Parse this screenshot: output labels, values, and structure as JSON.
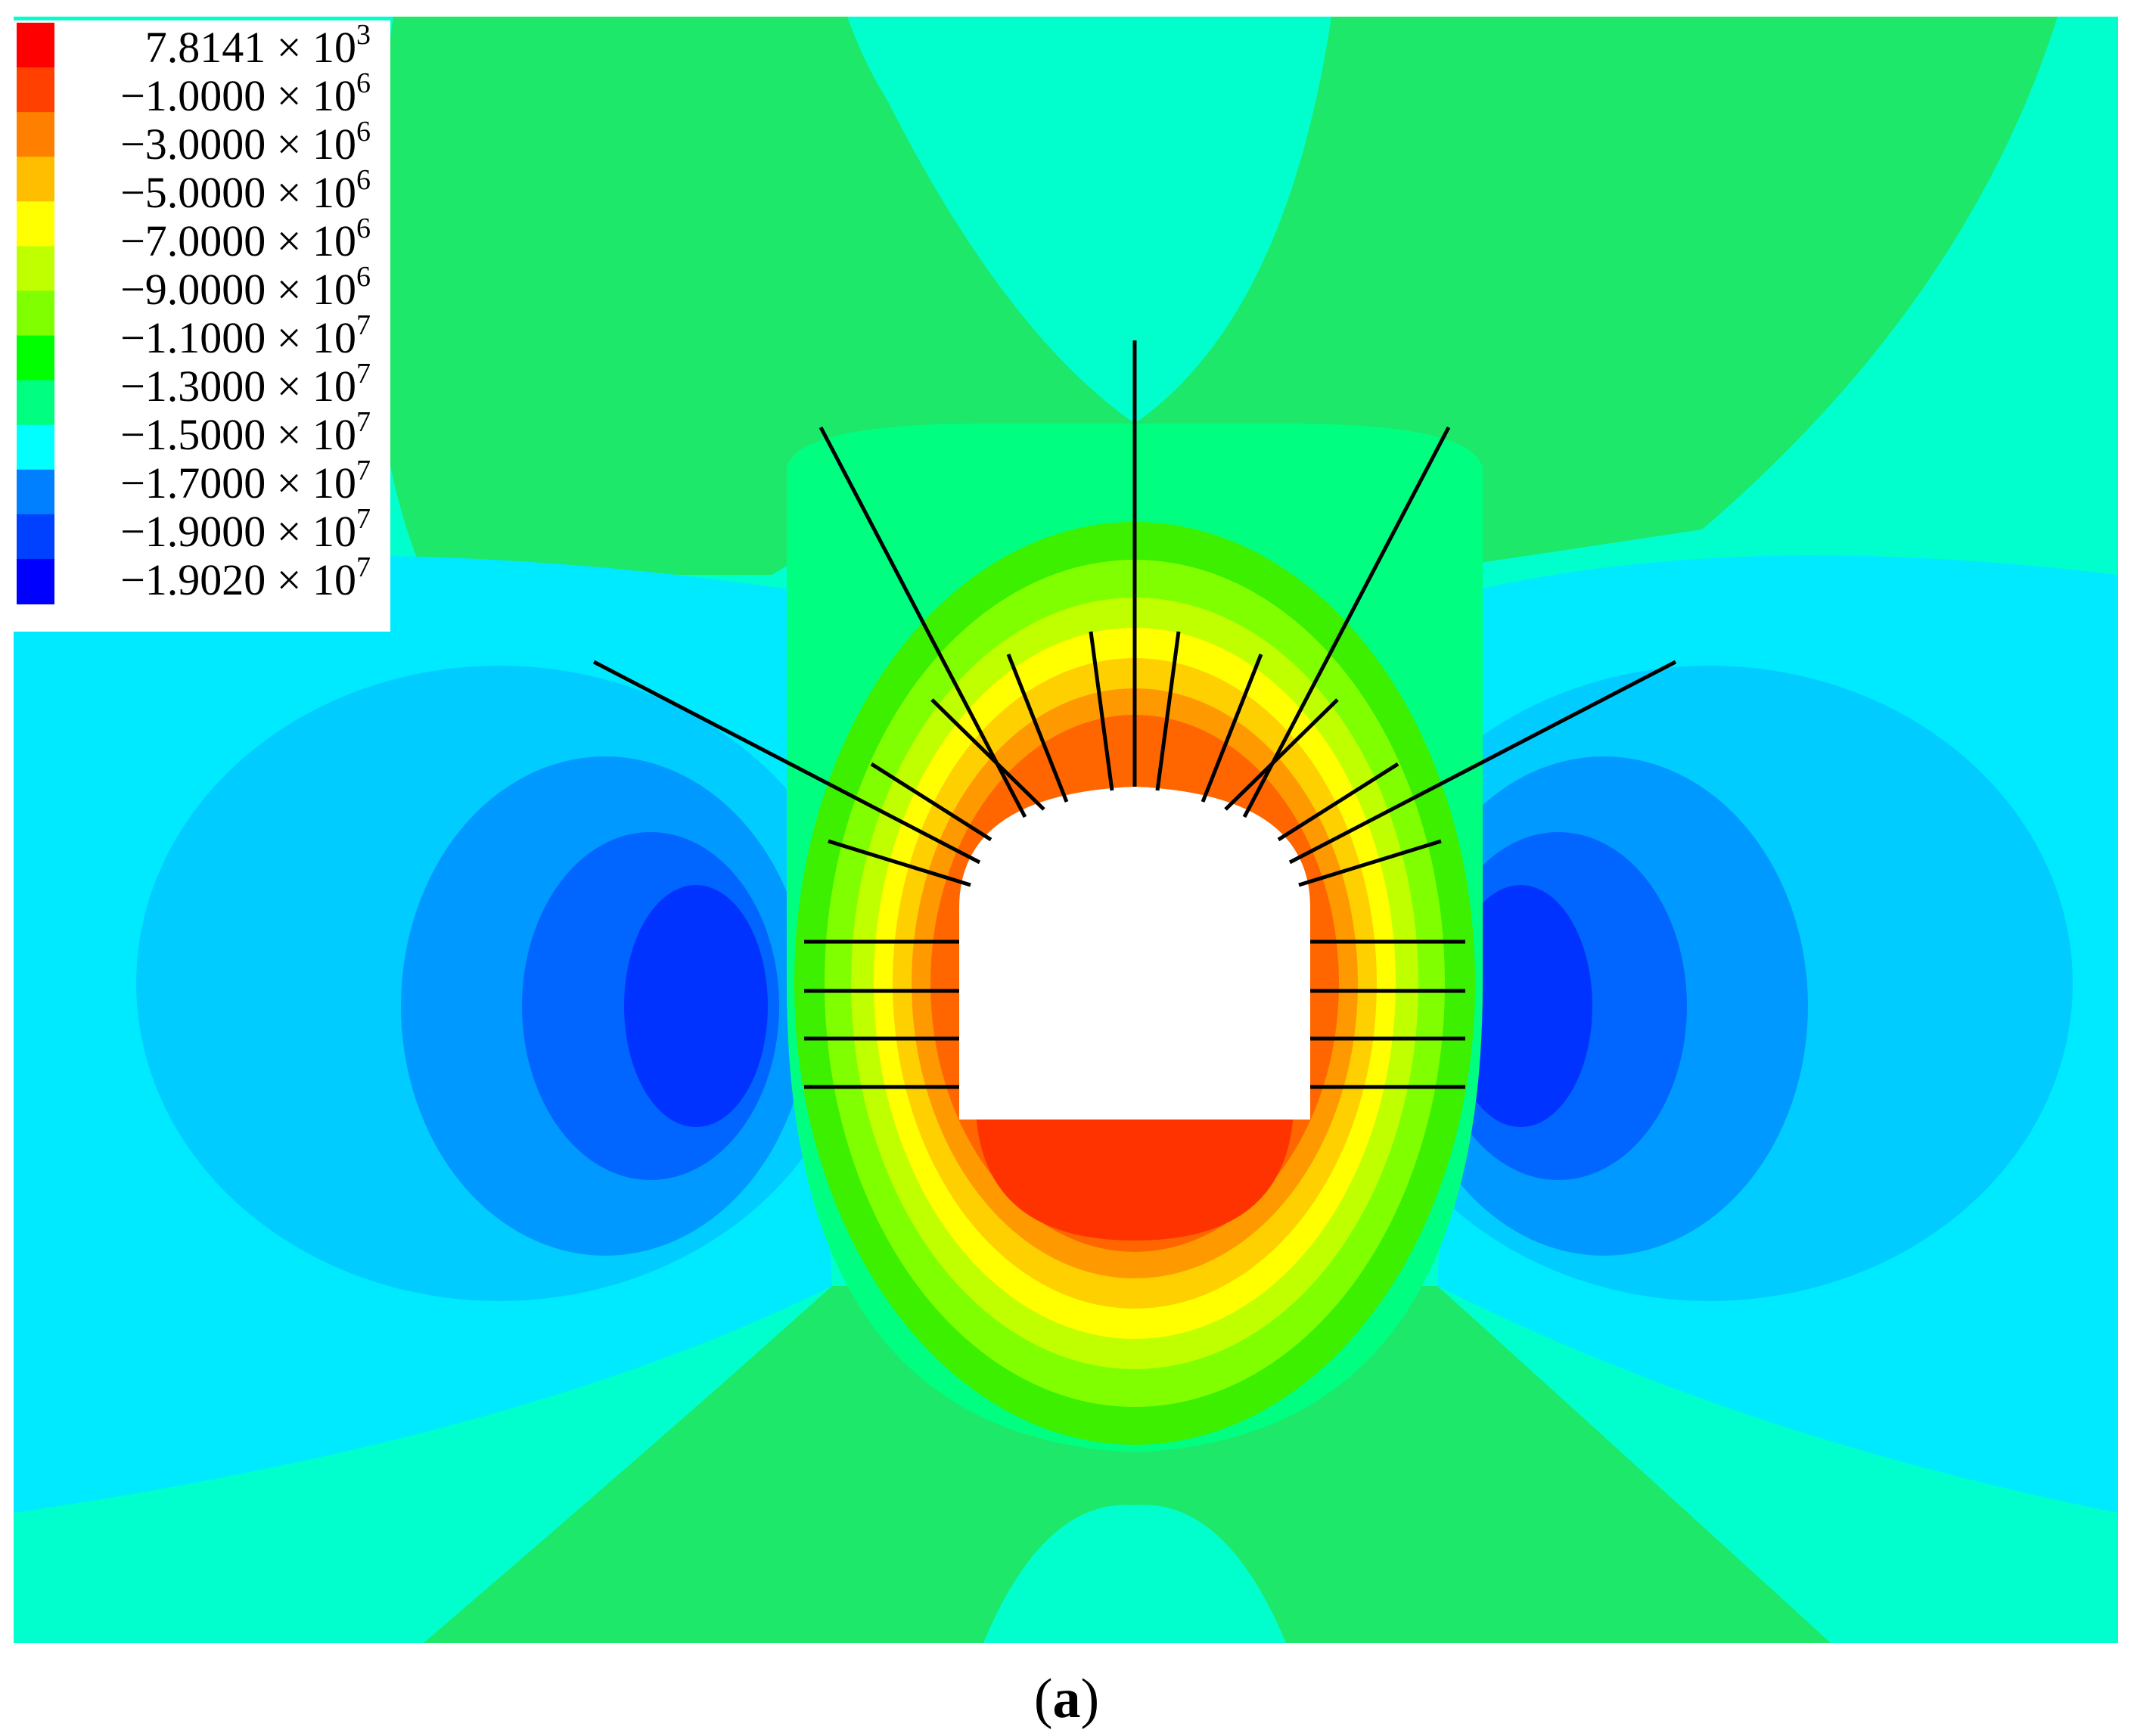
{
  "figure": {
    "caption_label": "a",
    "caption_open": "(",
    "caption_close": ")"
  },
  "legend": {
    "entries": [
      {
        "mantissa": "7.8141",
        "exponent": "3",
        "color": "#ff0000"
      },
      {
        "mantissa": "−1.0000",
        "exponent": "6",
        "color": "#ff4000"
      },
      {
        "mantissa": "−3.0000",
        "exponent": "6",
        "color": "#ff8000"
      },
      {
        "mantissa": "−5.0000",
        "exponent": "6",
        "color": "#ffbf00"
      },
      {
        "mantissa": "−5.0000",
        "exponent": "6",
        "color": "#ffff00"
      },
      {
        "mantissa": "−7.0000",
        "exponent": "6",
        "color": "#bfff00"
      },
      {
        "mantissa": "−9.0000",
        "exponent": "6",
        "color": "#80ff00"
      },
      {
        "mantissa": "−1.1000",
        "exponent": "7",
        "color": "#00ff00"
      },
      {
        "mantissa": "−1.3000",
        "exponent": "7",
        "color": "#00ff80"
      },
      {
        "mantissa": "−1.5000",
        "exponent": "7",
        "color": "#00ffff"
      },
      {
        "mantissa": "−1.7000",
        "exponent": "7",
        "color": "#0080ff"
      },
      {
        "mantissa": "−1.9000",
        "exponent": "7",
        "color": "#0040ff"
      },
      {
        "mantissa": "−1.9020",
        "exponent": "7",
        "color": "#0000ff"
      }
    ],
    "times_sign": "×",
    "base": "10"
  },
  "colors": {
    "far_field": "#00ffcc",
    "arch_zone": "#1ee86a",
    "side_band": "#00eaff",
    "blue_1": "#00ccff",
    "blue_2": "#0099ff",
    "blue_3": "#0066ff",
    "blue_4": "#0033ff",
    "tunnel": "#ffffff",
    "bolt": "#000000"
  }
}
